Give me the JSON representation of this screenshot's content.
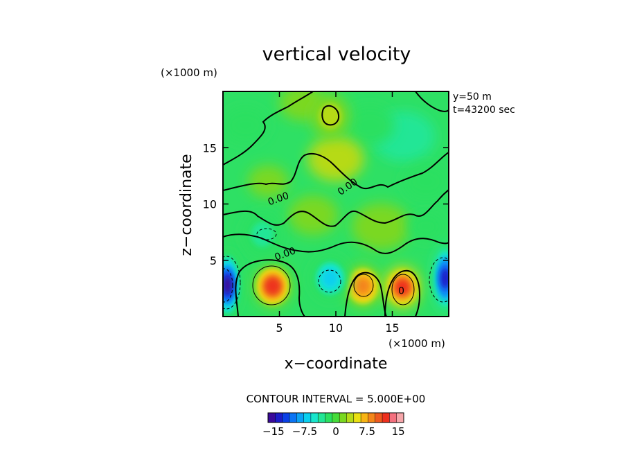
{
  "chart_data": {
    "type": "heatmap",
    "title": "vertical velocity",
    "xlabel": "x−coordinate",
    "ylabel": "z−coordinate",
    "x_unit": "(×1000 m)",
    "y_unit": "(×1000 m)",
    "xlim": [
      0,
      20
    ],
    "ylim": [
      0,
      20
    ],
    "x_ticks": [
      5,
      10,
      15
    ],
    "y_ticks": [
      5,
      10,
      15
    ],
    "info_lines": [
      "y=50 m",
      "t=43200 sec"
    ],
    "contour_interval_text": "CONTOUR INTERVAL = 5.000E+00",
    "contour_labels": [
      {
        "text": "0.00",
        "x": 11.2,
        "z": 11.3,
        "angle": -35
      },
      {
        "text": "0.00",
        "x": 5.0,
        "z": 10.2,
        "angle": -20
      },
      {
        "text": "0.00",
        "x": 5.6,
        "z": 5.3,
        "angle": -20
      },
      {
        "text": "0",
        "x": 15.8,
        "z": 2.0,
        "angle": 0
      }
    ],
    "features": [
      {
        "type": "updraft",
        "x": 4.4,
        "z": 2.7,
        "peak": 12
      },
      {
        "type": "updraft",
        "x": 12.4,
        "z": 2.7,
        "peak": 9
      },
      {
        "type": "updraft",
        "x": 15.9,
        "z": 2.6,
        "peak": 11
      },
      {
        "type": "downdraft",
        "x": 0.4,
        "z": 2.8,
        "peak": -15
      },
      {
        "type": "downdraft",
        "x": 19.7,
        "z": 3.4,
        "peak": -13
      },
      {
        "type": "downdraft",
        "x": 9.5,
        "z": 3.4,
        "peak": -7
      },
      {
        "type": "downdraft",
        "x": 3.5,
        "z": 7.3,
        "peak": -4
      },
      {
        "type": "updraft",
        "x": 9.5,
        "z": 17.8,
        "peak": 3
      }
    ],
    "colorbar": {
      "ticks": [
        -15,
        -7.5,
        0,
        7.5,
        15
      ],
      "tick_labels": [
        "−15",
        "−7.5",
        "0",
        "7.5",
        "15"
      ],
      "colors": [
        "#3a0a9a",
        "#1c1cc8",
        "#0a40e6",
        "#0a74f4",
        "#0aa2f4",
        "#0ad0ee",
        "#18e6cc",
        "#22e696",
        "#2ae060",
        "#46dc3a",
        "#7ad820",
        "#b6da18",
        "#eae012",
        "#f8b414",
        "#f4861a",
        "#ee5a1e",
        "#ee301e",
        "#f4707e",
        "#f6a6aa"
      ]
    }
  }
}
